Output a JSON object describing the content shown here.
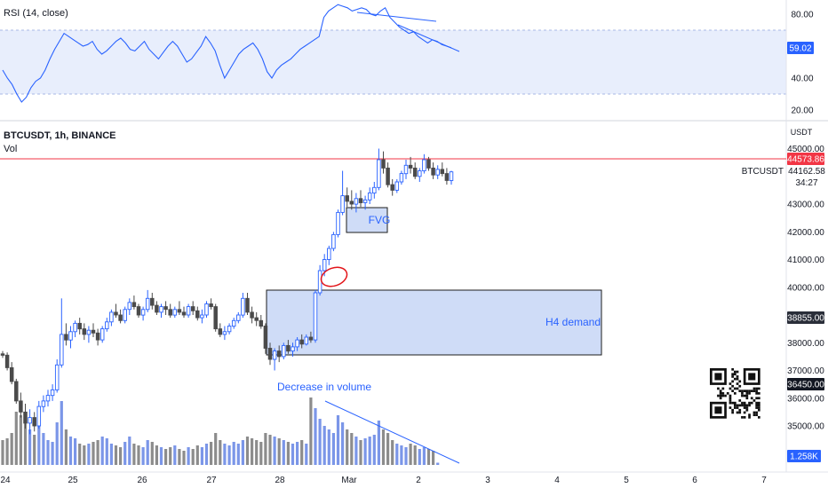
{
  "rsi_panel": {
    "title": "RSI (14, close)",
    "band_upper": 70,
    "band_lower": 30,
    "ticks": [
      "80.00",
      "60.00",
      "40.00",
      "20.00"
    ],
    "last_value": "59.02",
    "colors": {
      "line": "#2962ff",
      "band": "#e8eefc"
    }
  },
  "main_panel": {
    "symbol_line": "BTCUSDT, 1h, BINANCE",
    "vol_label": "Vol",
    "currency": "USDT",
    "ticks": [
      "45000.00",
      "43000.00",
      "42000.00",
      "41000.00",
      "40000.00",
      "38000.00",
      "37000.00",
      "36000.00",
      "35000.00"
    ],
    "price_marker": {
      "value": "44573.86",
      "color": "#f23645"
    },
    "current": {
      "symbol": "BTCUSDT",
      "price": "44162.58",
      "countdown": "34:27"
    },
    "level_labels": [
      "38855.00",
      "36450.00"
    ],
    "volume_label": "1.258K",
    "colors": {
      "up": "#2962ff",
      "down": "#4a4a4a",
      "zone_fill": "#cfdcf7",
      "zone_stroke": "#1e1e1e",
      "annotation": "#2962ff"
    }
  },
  "x_axis": {
    "labels": [
      "24",
      "25",
      "26",
      "27",
      "28",
      "Mar",
      "2",
      "3",
      "4",
      "5",
      "6",
      "7"
    ]
  },
  "annotations": {
    "fvg": "FVG",
    "demand": "H4 demand",
    "volume_note": "Decrease in volume"
  },
  "icons": {
    "qr": "qr-code-icon",
    "circle": "ellipse-marker"
  },
  "chart_data": [
    {
      "type": "candlestick",
      "title": "BTCUSDT, 1h, BINANCE",
      "x_range": [
        "Feb 24",
        "Mar 7"
      ],
      "ylim": [
        34500,
        45200
      ],
      "series": [
        {
          "name": "",
          "values": [
            [
              37600,
              37700,
              37450,
              37550
            ],
            [
              37550,
              37650,
              37000,
              37100
            ],
            [
              37100,
              37300,
              36500,
              36600
            ],
            [
              36600,
              36700,
              35800,
              35900
            ],
            [
              35900,
              36200,
              35300,
              35500
            ],
            [
              35500,
              35800,
              34900,
              35100
            ],
            [
              35100,
              35600,
              34700,
              35300
            ],
            [
              35300,
              35500,
              34800,
              35000
            ],
            [
              35000,
              35900,
              34900,
              35700
            ],
            [
              35700,
              36100,
              35500,
              35900
            ],
            [
              35900,
              36300,
              35700,
              36100
            ],
            [
              36100,
              36500,
              35900,
              36300
            ],
            [
              36300,
              37400,
              36200,
              37200
            ],
            [
              37200,
              39600,
              37100,
              38300
            ],
            [
              38300,
              38700,
              37900,
              38100
            ],
            [
              38100,
              38600,
              37800,
              38400
            ],
            [
              38400,
              38800,
              38200,
              38700
            ],
            [
              38700,
              38900,
              38300,
              38500
            ],
            [
              38500,
              38700,
              38100,
              38300
            ],
            [
              38300,
              38600,
              38000,
              38450
            ],
            [
              38450,
              38700,
              38200,
              38350
            ],
            [
              38350,
              38500,
              37900,
              38100
            ],
            [
              38100,
              38600,
              38000,
              38500
            ],
            [
              38500,
              38900,
              38400,
              38750
            ],
            [
              38750,
              39200,
              38600,
              39100
            ],
            [
              39100,
              39400,
              38900,
              39000
            ],
            [
              39000,
              39200,
              38700,
              38800
            ],
            [
              38800,
              39300,
              38700,
              39200
            ],
            [
              39200,
              39600,
              39000,
              39450
            ],
            [
              39450,
              39700,
              39200,
              39300
            ],
            [
              39300,
              39400,
              38900,
              39000
            ],
            [
              39000,
              39300,
              38800,
              39200
            ],
            [
              39200,
              39900,
              39100,
              39600
            ],
            [
              39600,
              39800,
              39200,
              39350
            ],
            [
              39350,
              39500,
              39000,
              39100
            ],
            [
              39100,
              39400,
              38900,
              39300
            ],
            [
              39300,
              39500,
              39000,
              39200
            ],
            [
              39200,
              39400,
              38900,
              39000
            ],
            [
              39000,
              39300,
              38900,
              39200
            ],
            [
              39200,
              39500,
              39000,
              39100
            ],
            [
              39100,
              39300,
              38900,
              39000
            ],
            [
              39000,
              39400,
              38900,
              39300
            ],
            [
              39300,
              39500,
              39000,
              39150
            ],
            [
              39150,
              39300,
              38800,
              38900
            ],
            [
              38900,
              39200,
              38700,
              39000
            ],
            [
              39000,
              39500,
              38900,
              39400
            ],
            [
              39400,
              39600,
              39200,
              39300
            ],
            [
              39300,
              39400,
              38400,
              38500
            ],
            [
              38500,
              38700,
              38200,
              38300
            ],
            [
              38300,
              38600,
              38100,
              38400
            ],
            [
              38400,
              38700,
              38300,
              38600
            ],
            [
              38600,
              38900,
              38500,
              38800
            ],
            [
              38800,
              39100,
              38700,
              39000
            ],
            [
              39000,
              39800,
              38900,
              39600
            ],
            [
              39600,
              39800,
              39000,
              39100
            ],
            [
              39100,
              39300,
              38700,
              38900
            ],
            [
              38900,
              39100,
              38600,
              38800
            ],
            [
              38800,
              39000,
              38500,
              38600
            ],
            [
              38600,
              38700,
              37600,
              37800
            ],
            [
              37800,
              38000,
              37200,
              37400
            ],
            [
              37400,
              37800,
              37000,
              37700
            ],
            [
              37700,
              37900,
              37300,
              37500
            ],
            [
              37500,
              38000,
              37400,
              37900
            ],
            [
              37900,
              38100,
              37600,
              37700
            ],
            [
              37700,
              38000,
              37500,
              37850
            ],
            [
              37850,
              38200,
              37700,
              38100
            ],
            [
              38100,
              38300,
              37800,
              37950
            ],
            [
              37950,
              38300,
              37900,
              38200
            ],
            [
              38200,
              38400,
              38000,
              38100
            ],
            [
              38100,
              39900,
              38000,
              39800
            ],
            [
              39800,
              40800,
              39700,
              40600
            ],
            [
              40600,
              41200,
              40400,
              41000
            ],
            [
              41000,
              41500,
              40800,
              41400
            ],
            [
              41400,
              42000,
              41300,
              41900
            ],
            [
              41900,
              42800,
              41800,
              42700
            ],
            [
              42700,
              44200,
              42600,
              43300
            ],
            [
              43300,
              43600,
              42900,
              43100
            ],
            [
              43100,
              43500,
              42800,
              43000
            ],
            [
              43000,
              43400,
              42700,
              43200
            ],
            [
              43200,
              43500,
              42900,
              43050
            ],
            [
              43050,
              43300,
              42800,
              43150
            ],
            [
              43150,
              43600,
              43000,
              43400
            ],
            [
              43400,
              43800,
              43200,
              43600
            ],
            [
              43600,
              45000,
              43500,
              44600
            ],
            [
              44600,
              44900,
              44100,
              44300
            ],
            [
              44300,
              44500,
              43600,
              43700
            ],
            [
              43700,
              43900,
              43300,
              43500
            ],
            [
              43500,
              43900,
              43400,
              43800
            ],
            [
              43800,
              44200,
              43700,
              44100
            ],
            [
              44100,
              44600,
              43900,
              44400
            ],
            [
              44400,
              44700,
              44100,
              44300
            ],
            [
              44300,
              44500,
              43900,
              44000
            ],
            [
              44000,
              44300,
              43800,
              44200
            ],
            [
              44200,
              44800,
              44100,
              44600
            ],
            [
              44600,
              44700,
              44200,
              44300
            ],
            [
              44300,
              44500,
              43900,
              44050
            ],
            [
              44050,
              44400,
              43900,
              44250
            ],
            [
              44250,
              44500,
              44000,
              44100
            ],
            [
              44100,
              44300,
              43700,
              43850
            ],
            [
              43850,
              44200,
              43700,
              44162.58
            ]
          ]
        }
      ]
    },
    {
      "type": "line",
      "title": "RSI (14, close)",
      "ylim": [
        10,
        90
      ],
      "series": [
        {
          "name": "",
          "values": [
            45,
            40,
            36,
            30,
            25,
            28,
            34,
            38,
            40,
            45,
            52,
            58,
            63,
            68,
            66,
            64,
            62,
            60,
            61,
            63,
            58,
            55,
            57,
            60,
            63,
            65,
            62,
            58,
            57,
            60,
            63,
            58,
            55,
            52,
            56,
            60,
            63,
            60,
            55,
            50,
            52,
            56,
            60,
            66,
            62,
            57,
            48,
            40,
            45,
            50,
            55,
            58,
            60,
            62,
            58,
            52,
            44,
            40,
            45,
            48,
            50,
            52,
            55,
            58,
            60,
            62,
            64,
            66,
            78,
            82,
            84,
            86,
            85,
            84,
            82,
            83,
            84,
            83,
            80,
            79,
            82,
            84,
            78,
            75,
            72,
            70,
            68,
            69,
            66,
            64,
            62,
            64,
            63,
            61,
            60,
            59.02
          ]
        }
      ]
    },
    {
      "type": "bar",
      "title": "Vol",
      "series": [
        {
          "name": "",
          "values": [
            14,
            15,
            18,
            30,
            28,
            24,
            20,
            17,
            22,
            18,
            14,
            13,
            24,
            36,
            20,
            16,
            15,
            12,
            11,
            12,
            13,
            14,
            16,
            15,
            12,
            11,
            10,
            13,
            16,
            12,
            11,
            10,
            14,
            13,
            11,
            10,
            9,
            10,
            11,
            9,
            8,
            10,
            9,
            11,
            10,
            12,
            13,
            18,
            14,
            12,
            11,
            13,
            12,
            14,
            16,
            15,
            14,
            13,
            18,
            17,
            16,
            15,
            14,
            13,
            12,
            13,
            14,
            12,
            38,
            32,
            26,
            22,
            20,
            18,
            28,
            24,
            20,
            18,
            16,
            14,
            15,
            16,
            17,
            25,
            20,
            18,
            14,
            12,
            11,
            10,
            12,
            11,
            9,
            10,
            9,
            8,
            1.258
          ]
        }
      ]
    }
  ]
}
